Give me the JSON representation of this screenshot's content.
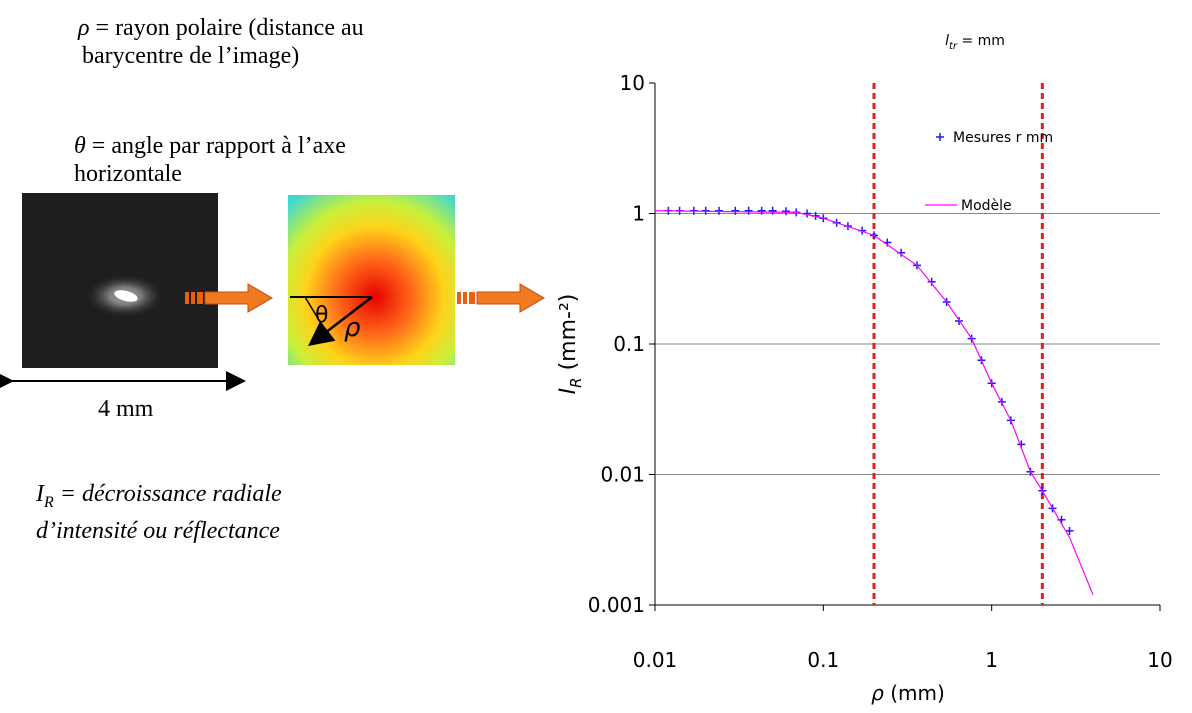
{
  "rho_definition": {
    "symbol": "ρ",
    "lines": [
      "= rayon polaire (distance au",
      "barycentre de l’image)"
    ]
  },
  "theta_definition": {
    "symbol": "θ",
    "lines": [
      "= angle par rapport à l’axe",
      "horizontale"
    ]
  },
  "image_width": "4 mm",
  "image_labels": {
    "angle": "θ",
    "radius": "ρ"
  },
  "ir_definition": {
    "symbol": "I",
    "subscript": "R",
    "lines": [
      "= décroissance radiale",
      "d’intensité ou réflectance"
    ]
  },
  "chart_data": {
    "type": "scatter",
    "title": {
      "symbol": "l",
      "subscript": "tr",
      "text": " = mm"
    },
    "x_label": {
      "symbol": "ρ",
      "text": " (mm)"
    },
    "y_label": {
      "symbol": "I",
      "subscript": "R",
      "text": " (mm-²)"
    },
    "log_x": true,
    "log_y": true,
    "xlim": [
      0.01,
      10
    ],
    "xticks": [
      0.01,
      0.1,
      1,
      10
    ],
    "ylim": [
      0.001,
      10
    ],
    "yticks": [
      0.001,
      0.01,
      0.1,
      1,
      10
    ],
    "grid": true,
    "legend": "upper right",
    "vlines": [
      0.2,
      2
    ],
    "vline_color": "#e02020",
    "series": [
      {
        "name": "Mesures r mm",
        "color": "#1a1aff",
        "marker": "plus",
        "x": [
          0.012,
          0.014,
          0.017,
          0.02,
          0.024,
          0.03,
          0.036,
          0.043,
          0.05,
          0.06,
          0.069,
          0.08,
          0.09,
          0.1,
          0.12,
          0.14,
          0.17,
          0.2,
          0.24,
          0.29,
          0.36,
          0.44,
          0.54,
          0.64,
          0.76,
          0.87,
          1,
          1.15,
          1.3,
          1.5,
          1.7,
          2,
          2.3,
          2.6,
          2.9
        ],
        "values": [
          1.05,
          1.05,
          1.05,
          1.05,
          1.05,
          1.05,
          1.05,
          1.05,
          1.05,
          1.04,
          1.02,
          1,
          0.96,
          0.92,
          0.85,
          0.8,
          0.74,
          0.68,
          0.6,
          0.5,
          0.4,
          0.3,
          0.21,
          0.15,
          0.11,
          0.075,
          0.05,
          0.036,
          0.026,
          0.017,
          0.0105,
          0.0075,
          0.0055,
          0.0045,
          0.0037
        ]
      },
      {
        "name": "Modèle",
        "color": "#ff00ff",
        "marker": "line",
        "x": [
          0.01,
          0.069,
          0.1,
          0.2,
          0.36,
          0.54,
          0.76,
          1,
          1.3,
          1.7,
          2,
          2.9,
          4
        ],
        "values": [
          1.05,
          1.02,
          0.92,
          0.68,
          0.4,
          0.21,
          0.11,
          0.05,
          0.026,
          0.0105,
          0.0075,
          0.0033,
          0.0012
        ]
      }
    ]
  }
}
